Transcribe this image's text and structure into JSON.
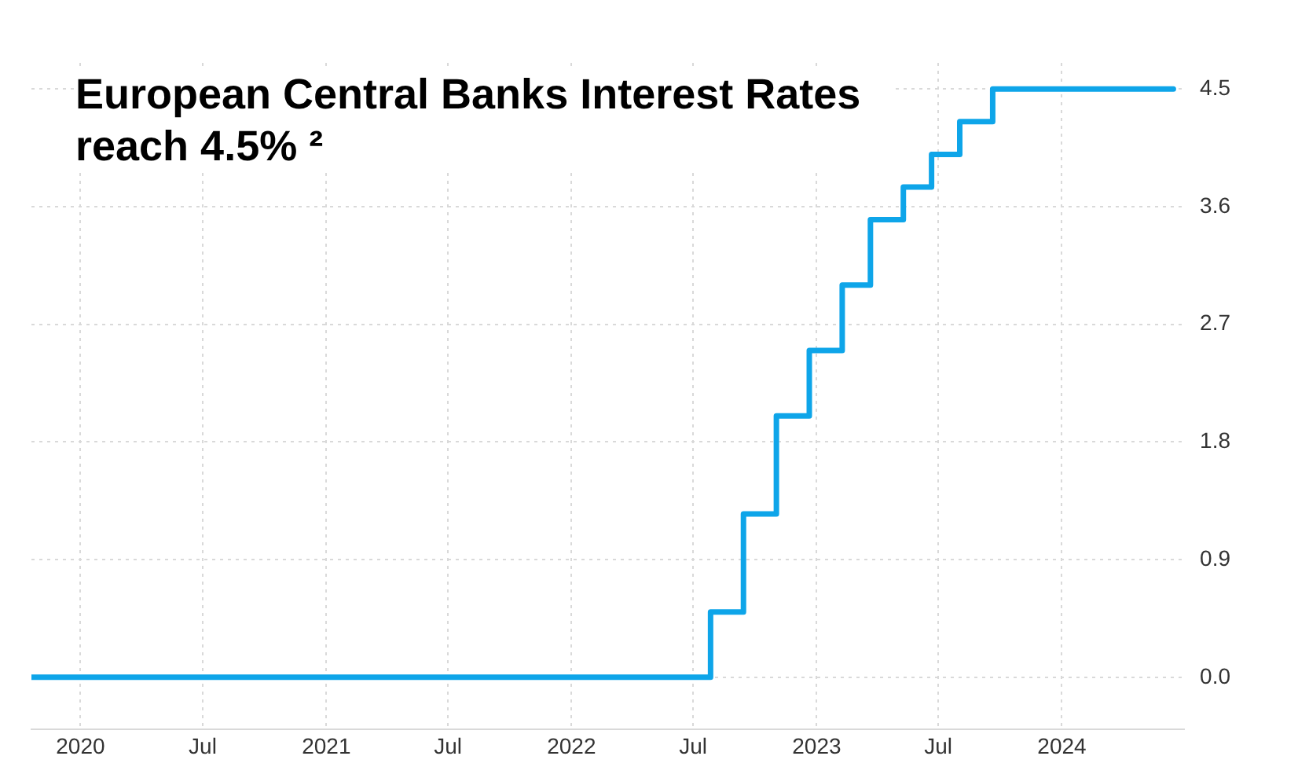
{
  "chart_data": {
    "type": "step",
    "title": "European Central Banks Interest Rates reach 4.5% ²",
    "x": [
      "2019-10-20",
      "2022-07-27",
      "2022-09-14",
      "2022-11-02",
      "2022-12-21",
      "2023-02-08",
      "2023-03-22",
      "2023-05-10",
      "2023-06-21",
      "2023-08-02",
      "2023-09-20",
      "2024-06-15"
    ],
    "series": [
      {
        "color": "#0ea5e9",
        "values": [
          0,
          0.5,
          1.25,
          2,
          2.5,
          3,
          3.5,
          3.75,
          4,
          4.25,
          4.5,
          4.5
        ]
      }
    ],
    "xlim": [
      "2019-10-20",
      "2024-07-01"
    ],
    "xticks": [
      {
        "value": "2020-01-01",
        "label": "2020"
      },
      {
        "value": "2020-07-01",
        "label": "Jul"
      },
      {
        "value": "2021-01-01",
        "label": "2021"
      },
      {
        "value": "2021-07-01",
        "label": "Jul"
      },
      {
        "value": "2022-01-01",
        "label": "2022"
      },
      {
        "value": "2022-07-01",
        "label": "Jul"
      },
      {
        "value": "2023-01-01",
        "label": "2023"
      },
      {
        "value": "2023-07-01",
        "label": "Jul"
      },
      {
        "value": "2024-01-01",
        "label": "2024"
      }
    ],
    "ylim": [
      -0.4,
      4.7
    ],
    "yticks": [
      {
        "value": 0,
        "label": "0.0"
      },
      0.9,
      1.8,
      2.7,
      3.6,
      4.5
    ],
    "grid": true,
    "legend": false
  }
}
